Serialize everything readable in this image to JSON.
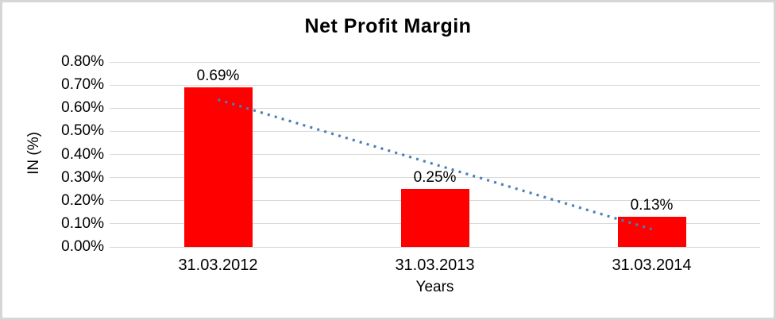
{
  "chart_data": {
    "type": "bar",
    "title": "Net Profit Margin",
    "categories": [
      "31.03.2012",
      "31.03.2013",
      "31.03.2014"
    ],
    "values": [
      0.69,
      0.25,
      0.13
    ],
    "value_labels": [
      "0.69%",
      "0.25%",
      "0.13%"
    ],
    "xlabel": "Years",
    "ylabel": "IN (%)",
    "ylim": [
      0,
      0.8
    ],
    "y_tick_step": 0.1,
    "y_ticks": [
      "0.80%",
      "0.70%",
      "0.60%",
      "0.50%",
      "0.40%",
      "0.30%",
      "0.20%",
      "0.10%",
      "0.00%"
    ],
    "grid": true,
    "legend_position": "none",
    "bar_color": "#FF0000",
    "gridline_color": "#D9D9D9",
    "trendline": {
      "type": "linear",
      "style": "dotted",
      "color": "#4A7EBB",
      "start_value": 0.637,
      "end_value": 0.077
    }
  }
}
